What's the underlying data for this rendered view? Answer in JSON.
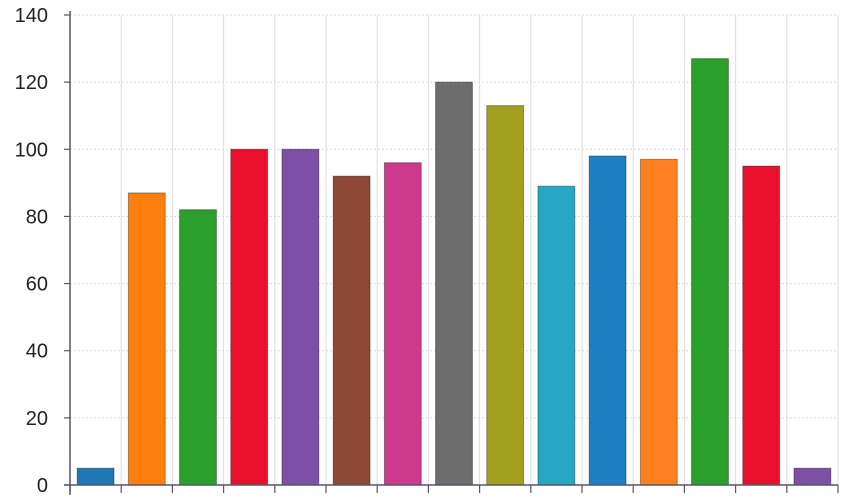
{
  "chart_data": {
    "type": "bar",
    "categories": [
      "",
      "",
      "",
      "",
      "",
      "",
      "",
      "",
      "",
      "",
      "",
      "",
      "",
      "",
      ""
    ],
    "values": [
      5,
      87,
      82,
      100,
      100,
      92,
      96,
      120,
      113,
      89,
      98,
      97,
      127,
      95,
      5
    ],
    "colors": [
      "#1f77b4",
      "#ff7f0e",
      "#2ca02c",
      "#e8102a",
      "#7f4fa6",
      "#8c4a36",
      "#cc3a8e",
      "#6d6d6d",
      "#a3a020",
      "#26a8c2",
      "#1f7ec4",
      "#ff8020",
      "#2ca02c",
      "#e8102a",
      "#7f4fa6"
    ],
    "ylim": [
      0,
      140
    ],
    "yticks": [
      "0",
      "20",
      "40",
      "60",
      "80",
      "100",
      "120",
      "140"
    ],
    "ytick_values": [
      0,
      20,
      40,
      60,
      80,
      100,
      120,
      140
    ],
    "grid": true,
    "title": "",
    "xlabel": "",
    "ylabel": ""
  }
}
